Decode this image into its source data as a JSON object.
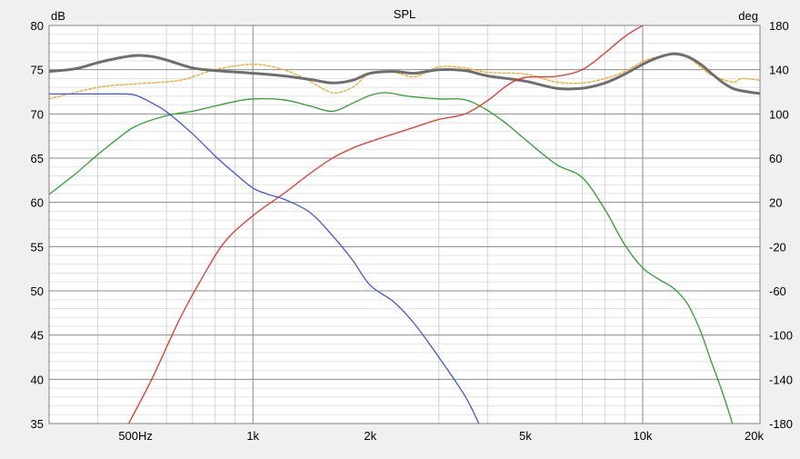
{
  "chart_data": {
    "type": "line",
    "title": "SPL",
    "left_axis": {
      "unit": "dB",
      "range": [
        35,
        80
      ],
      "ticks": [
        80,
        75,
        70,
        65,
        60,
        55,
        50,
        45,
        40,
        35
      ]
    },
    "right_axis": {
      "unit": "deg",
      "range": [
        -180,
        180
      ],
      "ticks": [
        180,
        140,
        100,
        60,
        20,
        -20,
        -60,
        -100,
        -140,
        -180
      ]
    },
    "x_axis": {
      "scale": "log",
      "range": [
        300,
        20000
      ],
      "tick_labels": [
        {
          "f": 500,
          "label": "500Hz"
        },
        {
          "f": 1000,
          "label": "1k"
        },
        {
          "f": 2000,
          "label": "2k"
        },
        {
          "f": 5000,
          "label": "5k"
        },
        {
          "f": 10000,
          "label": "10k"
        },
        {
          "f": 20000,
          "label": "20k"
        }
      ]
    },
    "grid": true,
    "colors": {
      "gray": "#6e6e6e",
      "orange": "#f5a623",
      "green": "#2ca02c",
      "red": "#e8332a",
      "blue": "#3d55e8"
    },
    "series": [
      {
        "color_key": "orange",
        "axis": "left",
        "dashed": true,
        "points": [
          [
            300,
            71.7
          ],
          [
            400,
            73.0
          ],
          [
            500,
            73.4
          ],
          [
            650,
            73.8
          ],
          [
            800,
            75.0
          ],
          [
            1000,
            75.6
          ],
          [
            1200,
            75.0
          ],
          [
            1400,
            73.7
          ],
          [
            1600,
            72.4
          ],
          [
            1800,
            73.0
          ],
          [
            2000,
            74.6
          ],
          [
            2300,
            74.7
          ],
          [
            2600,
            74.2
          ],
          [
            3000,
            75.3
          ],
          [
            3500,
            75.2
          ],
          [
            4000,
            74.7
          ],
          [
            5000,
            74.5
          ],
          [
            6000,
            73.6
          ],
          [
            7000,
            73.5
          ],
          [
            8000,
            74.0
          ],
          [
            9000,
            74.8
          ],
          [
            10000,
            75.9
          ],
          [
            11000,
            76.5
          ],
          [
            12000,
            76.7
          ],
          [
            13000,
            76.4
          ],
          [
            14000,
            75.4
          ],
          [
            15000,
            74.4
          ],
          [
            17000,
            73.6
          ],
          [
            18000,
            74.0
          ],
          [
            20000,
            73.8
          ]
        ]
      },
      {
        "color_key": "gray",
        "axis": "left",
        "thick": true,
        "points": [
          [
            300,
            74.8
          ],
          [
            350,
            75.1
          ],
          [
            400,
            75.8
          ],
          [
            450,
            76.3
          ],
          [
            500,
            76.6
          ],
          [
            550,
            76.5
          ],
          [
            600,
            76.1
          ],
          [
            700,
            75.2
          ],
          [
            800,
            74.9
          ],
          [
            1000,
            74.6
          ],
          [
            1200,
            74.3
          ],
          [
            1400,
            73.9
          ],
          [
            1600,
            73.5
          ],
          [
            1800,
            73.8
          ],
          [
            2000,
            74.6
          ],
          [
            2300,
            74.8
          ],
          [
            2600,
            74.6
          ],
          [
            3000,
            75.0
          ],
          [
            3500,
            74.9
          ],
          [
            4000,
            74.3
          ],
          [
            5000,
            73.7
          ],
          [
            6000,
            72.9
          ],
          [
            7000,
            72.9
          ],
          [
            8000,
            73.5
          ],
          [
            9000,
            74.5
          ],
          [
            10000,
            75.6
          ],
          [
            11000,
            76.4
          ],
          [
            12000,
            76.8
          ],
          [
            13000,
            76.5
          ],
          [
            14000,
            75.7
          ],
          [
            15000,
            74.6
          ],
          [
            16000,
            73.6
          ],
          [
            17000,
            72.9
          ],
          [
            18000,
            72.6
          ],
          [
            20000,
            72.3
          ]
        ]
      },
      {
        "color_key": "green",
        "axis": "left",
        "points": [
          [
            300,
            60.9
          ],
          [
            350,
            63.2
          ],
          [
            400,
            65.4
          ],
          [
            450,
            67.2
          ],
          [
            500,
            68.6
          ],
          [
            600,
            69.8
          ],
          [
            700,
            70.3
          ],
          [
            800,
            70.9
          ],
          [
            900,
            71.4
          ],
          [
            1000,
            71.7
          ],
          [
            1200,
            71.6
          ],
          [
            1400,
            70.9
          ],
          [
            1600,
            70.3
          ],
          [
            1800,
            71.2
          ],
          [
            2000,
            72.1
          ],
          [
            2200,
            72.4
          ],
          [
            2500,
            72.0
          ],
          [
            3000,
            71.7
          ],
          [
            3500,
            71.6
          ],
          [
            4000,
            70.4
          ],
          [
            4500,
            68.8
          ],
          [
            5000,
            67.1
          ],
          [
            6000,
            64.3
          ],
          [
            7000,
            62.8
          ],
          [
            8000,
            59.2
          ],
          [
            9000,
            55.2
          ],
          [
            10000,
            52.6
          ],
          [
            11000,
            51.3
          ],
          [
            12000,
            50.3
          ],
          [
            13000,
            48.6
          ],
          [
            14000,
            45.7
          ],
          [
            15000,
            42.0
          ],
          [
            16000,
            38.6
          ],
          [
            17000,
            35.0
          ]
        ]
      },
      {
        "color_key": "red",
        "axis": "right",
        "points": [
          [
            480,
            -180
          ],
          [
            550,
            -140
          ],
          [
            650,
            -85
          ],
          [
            750,
            -45
          ],
          [
            850,
            -15
          ],
          [
            1000,
            8
          ],
          [
            1200,
            28
          ],
          [
            1400,
            46
          ],
          [
            1600,
            60
          ],
          [
            1800,
            69
          ],
          [
            2000,
            75
          ],
          [
            2300,
            82
          ],
          [
            2600,
            88
          ],
          [
            3000,
            95
          ],
          [
            3500,
            100
          ],
          [
            4000,
            112
          ],
          [
            4500,
            126
          ],
          [
            5000,
            133
          ],
          [
            6000,
            134
          ],
          [
            7000,
            140
          ],
          [
            8000,
            155
          ],
          [
            9000,
            170
          ],
          [
            10000,
            180
          ]
        ]
      },
      {
        "color_key": "blue",
        "axis": "right",
        "points": [
          [
            300,
            118
          ],
          [
            400,
            118
          ],
          [
            460,
            118
          ],
          [
            500,
            117
          ],
          [
            550,
            110
          ],
          [
            600,
            102
          ],
          [
            700,
            82
          ],
          [
            800,
            62
          ],
          [
            900,
            46
          ],
          [
            1000,
            33
          ],
          [
            1100,
            27
          ],
          [
            1200,
            23
          ],
          [
            1400,
            11
          ],
          [
            1600,
            -10
          ],
          [
            1800,
            -32
          ],
          [
            2000,
            -55
          ],
          [
            2300,
            -70
          ],
          [
            2600,
            -90
          ],
          [
            3000,
            -120
          ],
          [
            3500,
            -155
          ],
          [
            3800,
            -180
          ]
        ]
      }
    ]
  }
}
